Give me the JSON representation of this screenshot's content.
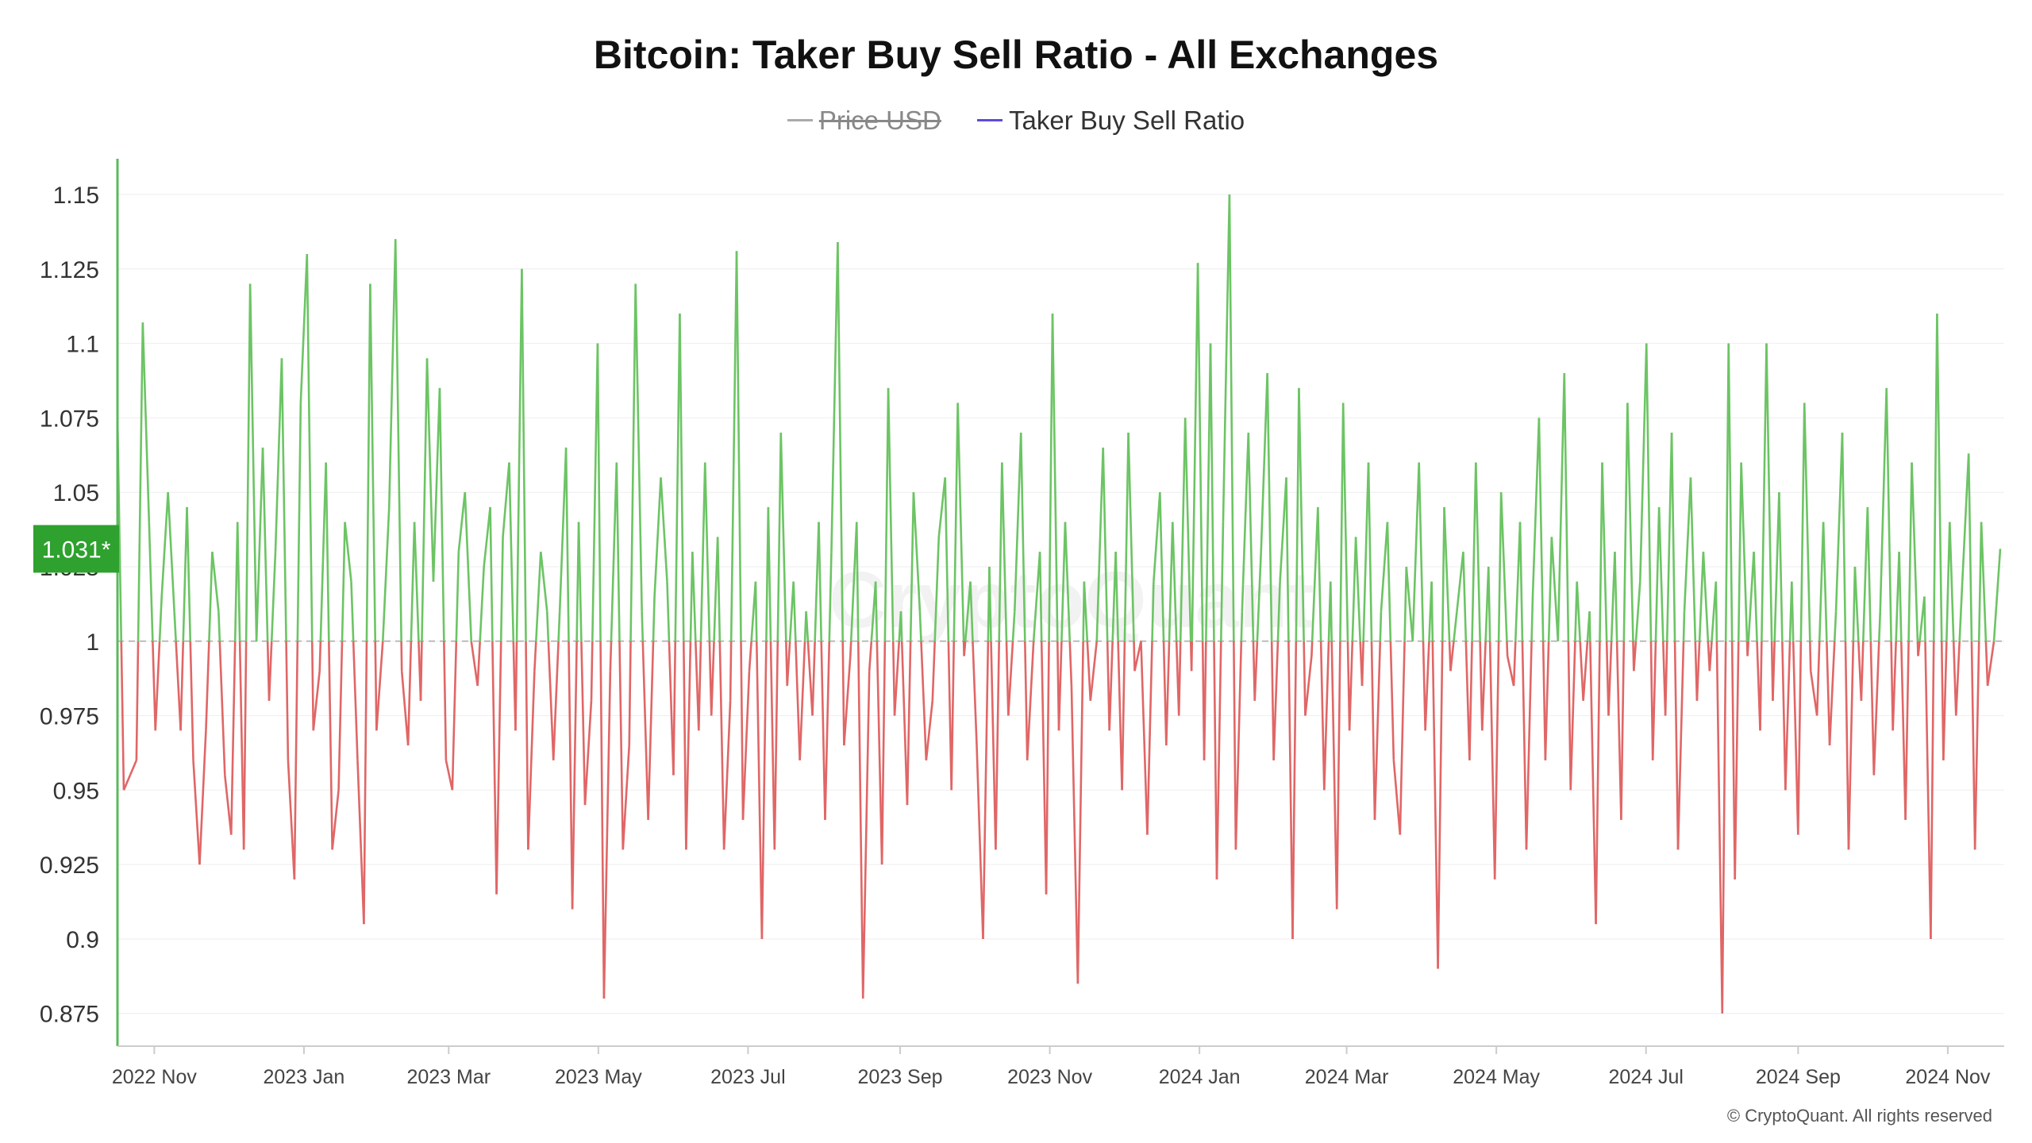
{
  "chart_data": {
    "type": "line",
    "title": "Bitcoin: Taker Buy Sell Ratio - All Exchanges",
    "legend": [
      {
        "name": "Price USD",
        "color": "#aaaaaa",
        "enabled": false
      },
      {
        "name": "Taker Buy Sell Ratio",
        "color": "#5b4bdb",
        "enabled": true
      }
    ],
    "y_ticks": [
      "0.875",
      "0.9",
      "0.925",
      "0.95",
      "0.975",
      "1",
      "1.025",
      "1.05",
      "1.075",
      "1.1",
      "1.125",
      "1.15"
    ],
    "ylim": [
      0.864,
      1.162
    ],
    "baseline": 1,
    "x_ticks": [
      {
        "label": "2022 Nov",
        "date": "2022-11-01"
      },
      {
        "label": "2023 Jan",
        "date": "2023-01-01"
      },
      {
        "label": "2023 Mar",
        "date": "2023-03-01"
      },
      {
        "label": "2023 May",
        "date": "2023-05-01"
      },
      {
        "label": "2023 Jul",
        "date": "2023-07-01"
      },
      {
        "label": "2023 Sep",
        "date": "2023-09-01"
      },
      {
        "label": "2023 Nov",
        "date": "2023-11-01"
      },
      {
        "label": "2024 Jan",
        "date": "2024-01-01"
      },
      {
        "label": "2024 Mar",
        "date": "2024-03-01"
      },
      {
        "label": "2024 May",
        "date": "2024-05-01"
      },
      {
        "label": "2024 Jul",
        "date": "2024-07-01"
      },
      {
        "label": "2024 Sep",
        "date": "2024-09-01"
      },
      {
        "label": "2024 Nov",
        "date": "2024-11-01"
      }
    ],
    "x_range": [
      "2022-10-17",
      "2024-11-24"
    ],
    "current_value_label": "1.031*",
    "colors": {
      "above": "#6cc464",
      "below": "#e06666",
      "axis": "#5cb85c",
      "badge": "#2ea12e"
    },
    "series": [
      {
        "name": "Taker Buy Sell Ratio",
        "x_start": "2022-10-17",
        "step_days": 3,
        "values": [
          1.075,
          0.95,
          0.955,
          0.96,
          1.107,
          1.04,
          0.97,
          1.015,
          1.05,
          1.01,
          0.97,
          1.045,
          0.96,
          0.925,
          0.97,
          1.03,
          1.01,
          0.955,
          0.935,
          1.04,
          0.93,
          1.12,
          1.0,
          1.065,
          0.98,
          1.03,
          1.095,
          0.96,
          0.92,
          1.08,
          1.13,
          0.97,
          0.99,
          1.06,
          0.93,
          0.95,
          1.04,
          1.02,
          0.96,
          0.905,
          1.12,
          0.97,
          1.0,
          1.045,
          1.135,
          0.99,
          0.965,
          1.04,
          0.98,
          1.095,
          1.02,
          1.085,
          0.96,
          0.95,
          1.03,
          1.05,
          1.0,
          0.985,
          1.025,
          1.045,
          0.915,
          1.035,
          1.06,
          0.97,
          1.125,
          0.93,
          0.99,
          1.03,
          1.01,
          0.96,
          1.01,
          1.065,
          0.91,
          1.04,
          0.945,
          0.98,
          1.1,
          0.88,
          0.99,
          1.06,
          0.93,
          0.965,
          1.12,
          1.01,
          0.94,
          1.015,
          1.055,
          1.02,
          0.955,
          1.11,
          0.93,
          1.03,
          0.97,
          1.06,
          0.975,
          1.035,
          0.93,
          0.98,
          1.131,
          0.94,
          0.99,
          1.02,
          0.9,
          1.045,
          0.93,
          1.07,
          0.985,
          1.02,
          0.96,
          1.01,
          0.975,
          1.04,
          0.94,
          1.03,
          1.134,
          0.965,
          0.995,
          1.04,
          0.88,
          0.99,
          1.02,
          0.925,
          1.085,
          0.975,
          1.01,
          0.945,
          1.05,
          1.01,
          0.96,
          0.98,
          1.035,
          1.055,
          0.95,
          1.08,
          0.995,
          1.02,
          0.965,
          0.9,
          1.025,
          0.93,
          1.06,
          0.975,
          1.01,
          1.07,
          0.96,
          1.0,
          1.03,
          0.915,
          1.11,
          0.97,
          1.04,
          0.985,
          0.885,
          1.02,
          0.98,
          1.0,
          1.065,
          0.97,
          1.03,
          0.95,
          1.07,
          0.99,
          1.0,
          0.935,
          1.02,
          1.05,
          0.965,
          1.04,
          0.975,
          1.075,
          0.99,
          1.127,
          0.96,
          1.1,
          0.92,
          1.04,
          1.15,
          0.93,
          1.01,
          1.07,
          0.98,
          1.03,
          1.09,
          0.96,
          1.02,
          1.055,
          0.9,
          1.085,
          0.975,
          0.995,
          1.045,
          0.95,
          1.02,
          0.91,
          1.08,
          0.97,
          1.035,
          0.985,
          1.06,
          0.94,
          1.01,
          1.04,
          0.96,
          0.935,
          1.025,
          1.0,
          1.06,
          0.97,
          1.02,
          0.89,
          1.045,
          0.99,
          1.01,
          1.03,
          0.96,
          1.06,
          0.97,
          1.025,
          0.92,
          1.05,
          0.995,
          0.985,
          1.04,
          0.93,
          1.015,
          1.075,
          0.96,
          1.035,
          1.0,
          1.09,
          0.95,
          1.02,
          0.98,
          1.01,
          0.905,
          1.06,
          0.975,
          1.03,
          0.94,
          1.08,
          0.99,
          1.02,
          1.1,
          0.96,
          1.045,
          0.975,
          1.07,
          0.93,
          1.01,
          1.055,
          0.98,
          1.03,
          0.99,
          1.02,
          0.875,
          1.1,
          0.92,
          1.06,
          0.995,
          1.03,
          0.97,
          1.1,
          0.98,
          1.05,
          0.95,
          1.02,
          0.935,
          1.08,
          0.99,
          0.975,
          1.04,
          0.965,
          1.01,
          1.07,
          0.93,
          1.025,
          0.98,
          1.045,
          0.955,
          1.01,
          1.085,
          0.97,
          1.03,
          0.94,
          1.06,
          0.995,
          1.015,
          0.9,
          1.11,
          0.96,
          1.04,
          0.975,
          1.02,
          1.063,
          0.93,
          1.04,
          0.985,
          1.0,
          1.031
        ]
      }
    ]
  },
  "watermark": "CryptoQuant",
  "copyright": "© CryptoQuant. All rights reserved"
}
